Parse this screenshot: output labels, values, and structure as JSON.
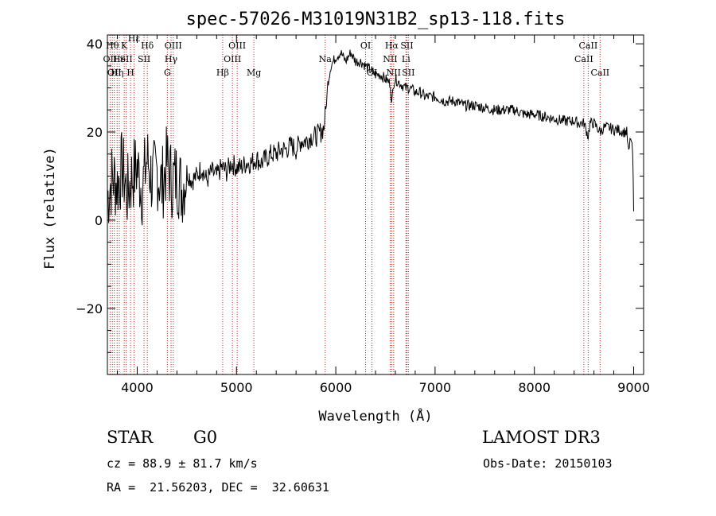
{
  "chart_data": {
    "type": "line",
    "title": "spec-57026-M31019N31B2_sp13-118.fits",
    "xlabel": "Wavelength (Å)",
    "ylabel": "Flux (relative)",
    "xlim": [
      3700,
      9100
    ],
    "ylim": [
      -35,
      42
    ],
    "xticks": [
      4000,
      5000,
      6000,
      7000,
      8000,
      9000
    ],
    "yticks": [
      -20,
      0,
      20,
      40
    ],
    "x_minor_step": 200,
    "y_minor_step": 5,
    "series": [
      {
        "name": "spectrum",
        "x": [
          3700,
          3750,
          3800,
          3850,
          3900,
          3950,
          4000,
          4050,
          4100,
          4150,
          4200,
          4250,
          4300,
          4350,
          4400,
          4450,
          4500,
          4550,
          4600,
          4650,
          4700,
          4750,
          4800,
          4850,
          4900,
          4950,
          5000,
          5050,
          5100,
          5150,
          5200,
          5250,
          5300,
          5350,
          5400,
          5450,
          5500,
          5550,
          5600,
          5650,
          5700,
          5750,
          5800,
          5850,
          5880,
          5900,
          5920,
          5950,
          6000,
          6050,
          6100,
          6150,
          6200,
          6250,
          6300,
          6350,
          6400,
          6450,
          6500,
          6550,
          6563,
          6580,
          6600,
          6650,
          6700,
          6750,
          6800,
          6850,
          6900,
          6950,
          7000,
          7100,
          7200,
          7300,
          7400,
          7500,
          7600,
          7700,
          7800,
          7900,
          8000,
          8100,
          8200,
          8300,
          8400,
          8450,
          8500,
          8542,
          8560,
          8600,
          8662,
          8700,
          8750,
          8800,
          8850,
          8900,
          8930,
          8950,
          8970,
          8990,
          9000
        ],
        "y": [
          5,
          10,
          8,
          12,
          6,
          10,
          12,
          7,
          14,
          9,
          11,
          8,
          13,
          9,
          10,
          7,
          11,
          9,
          10,
          12,
          9,
          11,
          10,
          12,
          11,
          13,
          12,
          12,
          13,
          13,
          14,
          13,
          14,
          15,
          15,
          16,
          16,
          17,
          16,
          18,
          18,
          19,
          19,
          20,
          21,
          25,
          31,
          35,
          37,
          38,
          36,
          38,
          36,
          36,
          35,
          34,
          33,
          33,
          32,
          31,
          26,
          31,
          32,
          31,
          30,
          30,
          29,
          29,
          28,
          28,
          28,
          27,
          27,
          26,
          26,
          25.5,
          25,
          25,
          25,
          24,
          24,
          23.5,
          23,
          22.5,
          22.5,
          22,
          22,
          19,
          22,
          22,
          20,
          21,
          21,
          20.5,
          20.5,
          20,
          20,
          15,
          19,
          15,
          2
        ]
      }
    ],
    "line_markers": [
      {
        "wavelength": 3727,
        "label": "OII",
        "row": 2
      },
      {
        "wavelength": 3750,
        "label": "Hθ",
        "row": 1
      },
      {
        "wavelength": 3770,
        "label": "OII",
        "row": 3
      },
      {
        "wavelength": 3798,
        "label": "Hη",
        "row": 3
      },
      {
        "wavelength": 3820,
        "label": "He",
        "row": 2
      },
      {
        "wavelength": 3869,
        "label": "K",
        "row": 1
      },
      {
        "wavelength": 3889,
        "label": "SII",
        "row": 2
      },
      {
        "wavelength": 3933,
        "label": "H",
        "row": 3
      },
      {
        "wavelength": 3968,
        "label": "Hε",
        "row": 0
      },
      {
        "wavelength": 4102,
        "label": "Hδ",
        "row": 1
      },
      {
        "wavelength": 4069,
        "label": "SII",
        "row": 2
      },
      {
        "wavelength": 4304,
        "label": "G",
        "row": 3
      },
      {
        "wavelength": 4341,
        "label": "Hγ",
        "row": 2
      },
      {
        "wavelength": 4363,
        "label": "OIII",
        "row": 1
      },
      {
        "wavelength": 4861,
        "label": "Hβ",
        "row": 3
      },
      {
        "wavelength": 4959,
        "label": "OIII",
        "row": 2
      },
      {
        "wavelength": 5007,
        "label": "OIII",
        "row": 1
      },
      {
        "wavelength": 5175,
        "label": "Mg",
        "row": 3
      },
      {
        "wavelength": 5893,
        "label": "Na",
        "row": 2
      },
      {
        "wavelength": 6300,
        "label": "OI",
        "row": 1
      },
      {
        "wavelength": 6364,
        "label": "OI",
        "row": 3
      },
      {
        "wavelength": 6548,
        "label": "NII",
        "row": 2
      },
      {
        "wavelength": 6563,
        "label": "Hα",
        "row": 1
      },
      {
        "wavelength": 6583,
        "label": "NII",
        "row": 3
      },
      {
        "wavelength": 6707,
        "label": "Li",
        "row": 2
      },
      {
        "wavelength": 6716,
        "label": "SII",
        "row": 1
      },
      {
        "wavelength": 6731,
        "label": "SII",
        "row": 3
      },
      {
        "wavelength": 8498,
        "label": "CaII",
        "row": 2
      },
      {
        "wavelength": 8542,
        "label": "CaII",
        "row": 1
      },
      {
        "wavelength": 8662,
        "label": "CaII",
        "row": 3
      }
    ]
  },
  "info": {
    "class": "STAR",
    "subclass": "G0",
    "survey": "LAMOST DR3",
    "cz": "cz = 88.9 ± 81.7 km/s",
    "obs_date": "Obs-Date: 20150103",
    "coords": "RA =  21.56203, DEC =  32.60631"
  },
  "colors": {
    "marker": "#b22222",
    "trace": "#000000"
  }
}
